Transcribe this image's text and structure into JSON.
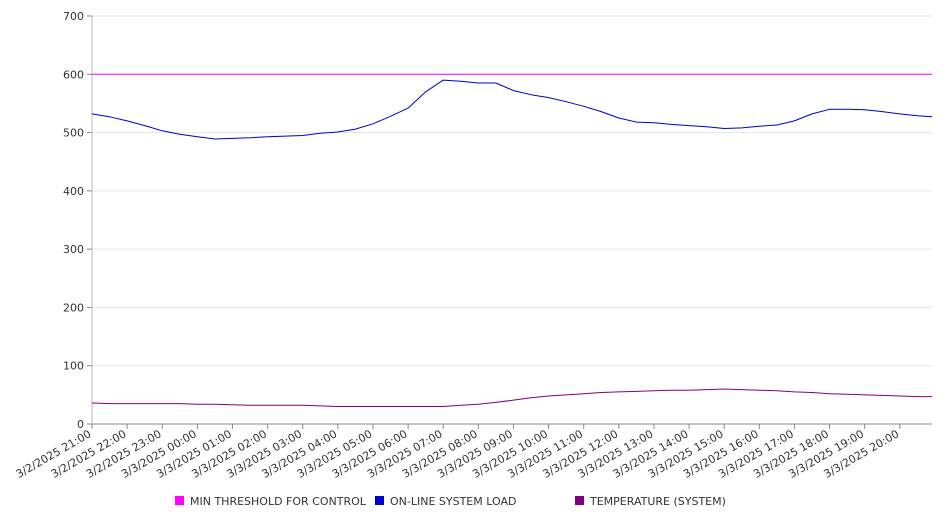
{
  "chart_data": {
    "type": "line",
    "title": "",
    "xlabel": "",
    "ylabel": "",
    "ylim": [
      0,
      700
    ],
    "yticks": [
      0,
      100,
      200,
      300,
      400,
      500,
      600,
      700
    ],
    "grid": true,
    "legend_position": "bottom",
    "x_tick_labels": [
      "3/2/2025 21:00",
      "3/2/2025 22:00",
      "3/2/2025 23:00",
      "3/3/2025 00:00",
      "3/3/2025 01:00",
      "3/3/2025 02:00",
      "3/3/2025 03:00",
      "3/3/2025 04:00",
      "3/3/2025 05:00",
      "3/3/2025 06:00",
      "3/3/2025 07:00",
      "3/3/2025 08:00",
      "3/3/2025 09:00",
      "3/3/2025 10:00",
      "3/3/2025 11:00",
      "3/3/2025 12:00",
      "3/3/2025 13:00",
      "3/3/2025 14:00",
      "3/3/2025 15:00",
      "3/3/2025 16:00",
      "3/3/2025 17:00",
      "3/3/2025 18:00",
      "3/3/2025 19:00",
      "3/3/2025 20:00"
    ],
    "x": [
      "3/2/2025 21:00",
      "3/2/2025 21:30",
      "3/2/2025 22:00",
      "3/2/2025 22:30",
      "3/2/2025 23:00",
      "3/2/2025 23:30",
      "3/3/2025 00:00",
      "3/3/2025 00:30",
      "3/3/2025 01:00",
      "3/3/2025 01:30",
      "3/3/2025 02:00",
      "3/3/2025 02:30",
      "3/3/2025 03:00",
      "3/3/2025 03:30",
      "3/3/2025 04:00",
      "3/3/2025 04:30",
      "3/3/2025 05:00",
      "3/3/2025 05:30",
      "3/3/2025 06:00",
      "3/3/2025 06:30",
      "3/3/2025 07:00",
      "3/3/2025 07:30",
      "3/3/2025 08:00",
      "3/3/2025 08:30",
      "3/3/2025 09:00",
      "3/3/2025 09:30",
      "3/3/2025 10:00",
      "3/3/2025 10:30",
      "3/3/2025 11:00",
      "3/3/2025 11:30",
      "3/3/2025 12:00",
      "3/3/2025 12:30",
      "3/3/2025 13:00",
      "3/3/2025 13:30",
      "3/3/2025 14:00",
      "3/3/2025 14:30",
      "3/3/2025 15:00",
      "3/3/2025 15:30",
      "3/3/2025 16:00",
      "3/3/2025 16:30",
      "3/3/2025 17:00",
      "3/3/2025 17:30",
      "3/3/2025 18:00",
      "3/3/2025 18:30",
      "3/3/2025 19:00",
      "3/3/2025 19:30",
      "3/3/2025 20:00",
      "3/3/2025 20:30",
      "3/3/2025 20:55"
    ],
    "series": [
      {
        "name": "MIN THRESHOLD FOR CONTROL",
        "color": "#ff00ff",
        "values": [
          600,
          600,
          600,
          600,
          600,
          600,
          600,
          600,
          600,
          600,
          600,
          600,
          600,
          600,
          600,
          600,
          600,
          600,
          600,
          600,
          600,
          600,
          600,
          600,
          600,
          600,
          600,
          600,
          600,
          600,
          600,
          600,
          600,
          600,
          600,
          600,
          600,
          600,
          600,
          600,
          600,
          600,
          600,
          600,
          600,
          600,
          600,
          600,
          600
        ]
      },
      {
        "name": "ON-LINE SYSTEM LOAD",
        "color": "#0000cc",
        "values": [
          532,
          527,
          520,
          512,
          503,
          497,
          493,
          489,
          490,
          491,
          493,
          494,
          495,
          499,
          501,
          506,
          515,
          528,
          542,
          570,
          590,
          588,
          585,
          585,
          572,
          565,
          560,
          553,
          545,
          536,
          525,
          518,
          517,
          514,
          512,
          510,
          507,
          508,
          511,
          513,
          520,
          532,
          540,
          540,
          539,
          536,
          532,
          529,
          527
        ]
      },
      {
        "name": "TEMPERATURE (SYSTEM)",
        "color": "#800080",
        "values": [
          36,
          35,
          35,
          35,
          35,
          35,
          34,
          34,
          33,
          32,
          32,
          32,
          32,
          31,
          30,
          30,
          30,
          30,
          30,
          30,
          30,
          32,
          34,
          37,
          41,
          45,
          48,
          50,
          52,
          54,
          55,
          56,
          57,
          58,
          58,
          59,
          60,
          59,
          58,
          57,
          55,
          54,
          52,
          51,
          50,
          49,
          48,
          47,
          47
        ]
      }
    ]
  }
}
